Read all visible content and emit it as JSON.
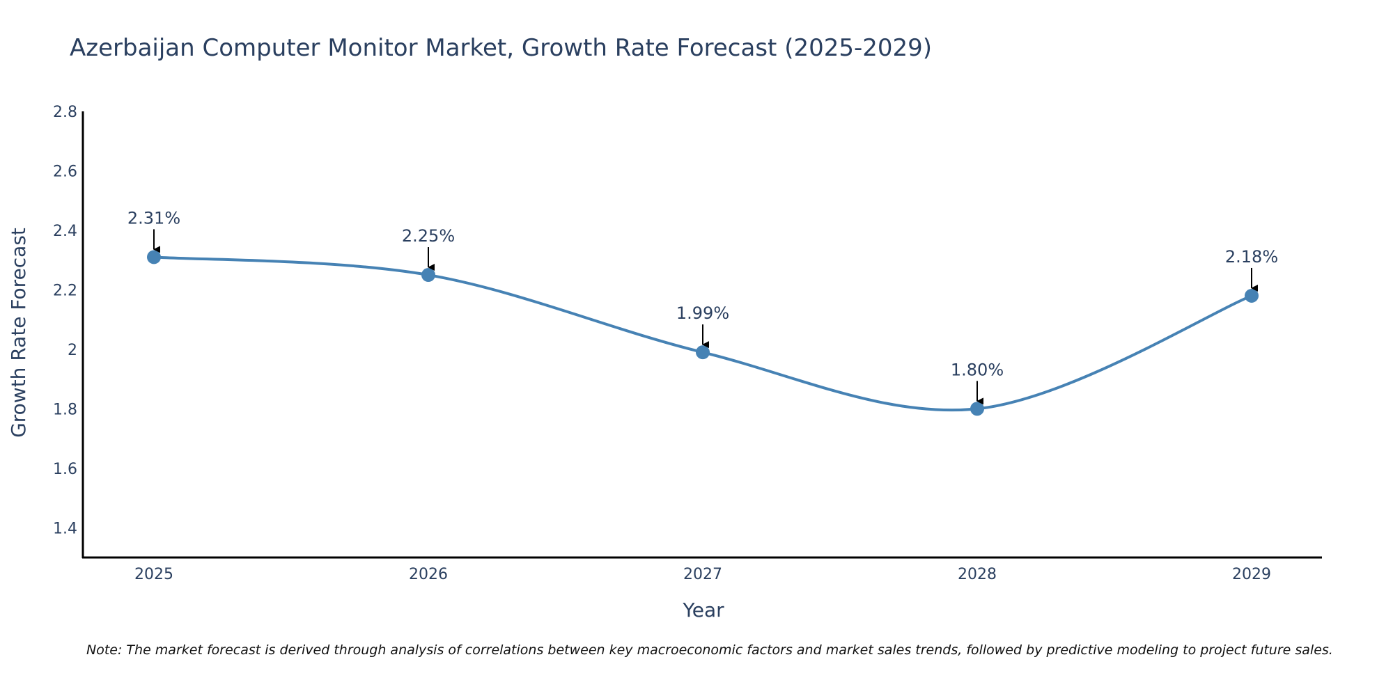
{
  "chart_data": {
    "type": "line",
    "title": "Azerbaijan Computer Monitor Market, Growth Rate Forecast (2025-2029)",
    "xlabel": "Year",
    "ylabel": "Growth Rate Forecast",
    "categories": [
      "2025",
      "2026",
      "2027",
      "2028",
      "2029"
    ],
    "values": [
      2.31,
      2.25,
      1.99,
      1.8,
      2.18
    ],
    "data_labels": [
      "2.31%",
      "2.25%",
      "1.99%",
      "1.80%",
      "2.18%"
    ],
    "ylim": [
      1.3,
      2.8
    ],
    "yticks": [
      1.4,
      1.6,
      1.8,
      2,
      2.2,
      2.4,
      2.6,
      2.8
    ],
    "ytick_labels": [
      "1.4",
      "1.6",
      "1.8",
      "2",
      "2.2",
      "2.4",
      "2.6",
      "2.8"
    ],
    "grid": false,
    "line_color": "#4682b4",
    "marker_color": "#4682b4",
    "arrow_color": "#000000",
    "note": "Note: The market forecast is derived through analysis of correlations between key macroeconomic factors and market sales trends, followed by predictive modeling to project future sales."
  }
}
